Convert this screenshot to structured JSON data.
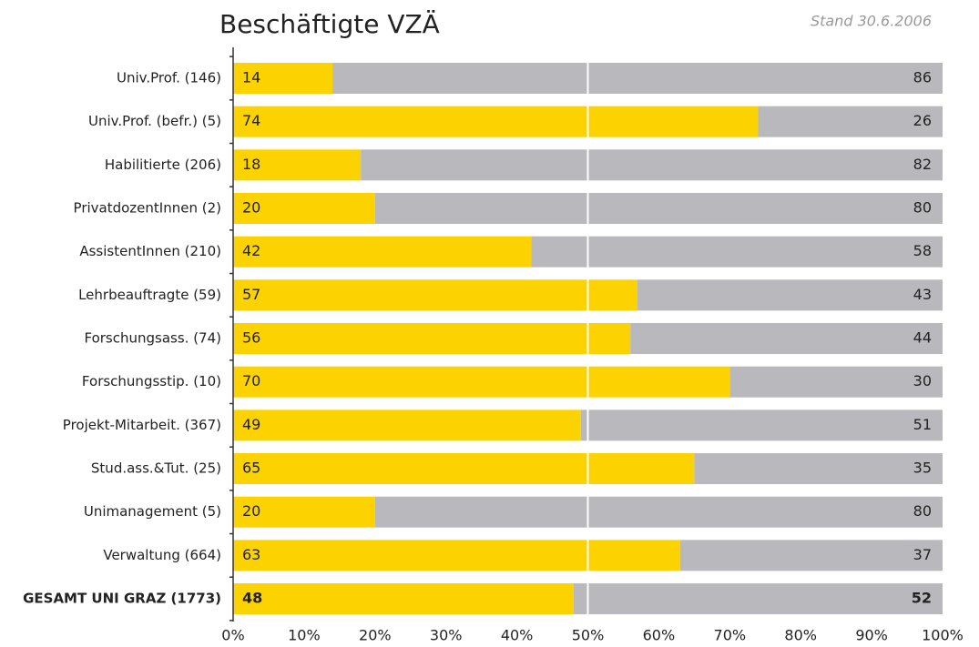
{
  "chart_data": {
    "type": "stacked_barh",
    "title": "Beschäftigte VZÄ",
    "subtitle": "Stand 30.6.2006",
    "categories": [
      "Univ.Prof. (146)",
      "Univ.Prof. (befr.) (5)",
      "Habilitierte (206)",
      "PrivatdozentInnen (2)",
      "AssistentInnen (210)",
      "Lehrbeauftragte (59)",
      "Forschungsass. (74)",
      "Forschungsstip. (10)",
      "Projekt-Mitarbeit. (367)",
      "Stud.ass.&Tut. (25)",
      "Unimanagement (5)",
      "Verwaltung (664)",
      "GESAMT UNI GRAZ (1773)"
    ],
    "series": [
      {
        "color": "#fcd200",
        "values": [
          14,
          74,
          18,
          20,
          42,
          57,
          56,
          70,
          49,
          65,
          20,
          63,
          48
        ]
      },
      {
        "color": "#b9b9bd",
        "values": [
          86,
          26,
          82,
          80,
          58,
          43,
          44,
          30,
          51,
          35,
          80,
          37,
          52
        ]
      }
    ],
    "xlim": [
      0,
      100
    ],
    "xticks": [
      {
        "value": 0,
        "label": "0%"
      },
      {
        "value": 10,
        "label": "10%"
      },
      {
        "value": 20,
        "label": "20%"
      },
      {
        "value": 30,
        "label": "30%"
      },
      {
        "value": 40,
        "label": "40%"
      },
      {
        "value": 50,
        "label": "50%"
      },
      {
        "value": 60,
        "label": "60%"
      },
      {
        "value": 70,
        "label": "70%"
      },
      {
        "value": 80,
        "label": "80%"
      },
      {
        "value": 90,
        "label": "90%"
      },
      {
        "value": 100,
        "label": "100%"
      }
    ]
  }
}
